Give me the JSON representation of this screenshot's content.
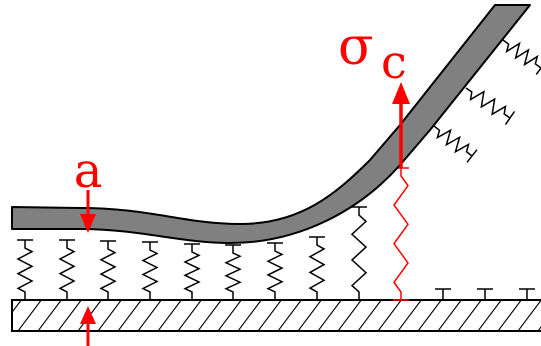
{
  "labels": {
    "a": "a",
    "sigma_symbol": "σ",
    "sigma_subscript": "c"
  },
  "colors": {
    "film": "#808080",
    "outline": "#000000",
    "highlight": "#ff0000",
    "background": "#ffffff"
  }
}
